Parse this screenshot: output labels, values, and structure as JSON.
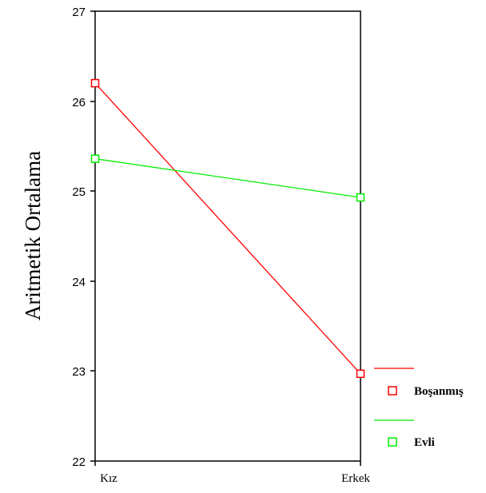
{
  "chart_data": {
    "type": "line",
    "ylabel": "Aritmetik Ortalama",
    "xlabel": "",
    "categories": [
      "Kız",
      "Erkek"
    ],
    "ylim": [
      22,
      27
    ],
    "yticks": [
      "22",
      "23",
      "24",
      "25",
      "26",
      "27"
    ],
    "grid": false,
    "legend_position": "right",
    "markers": "open-square",
    "series": [
      {
        "name": "Boşanmış",
        "values": [
          26.2,
          22.97
        ],
        "color": "#ff0000"
      },
      {
        "name": "Evli",
        "values": [
          25.36,
          24.93
        ],
        "color": "#00ee00"
      }
    ]
  }
}
